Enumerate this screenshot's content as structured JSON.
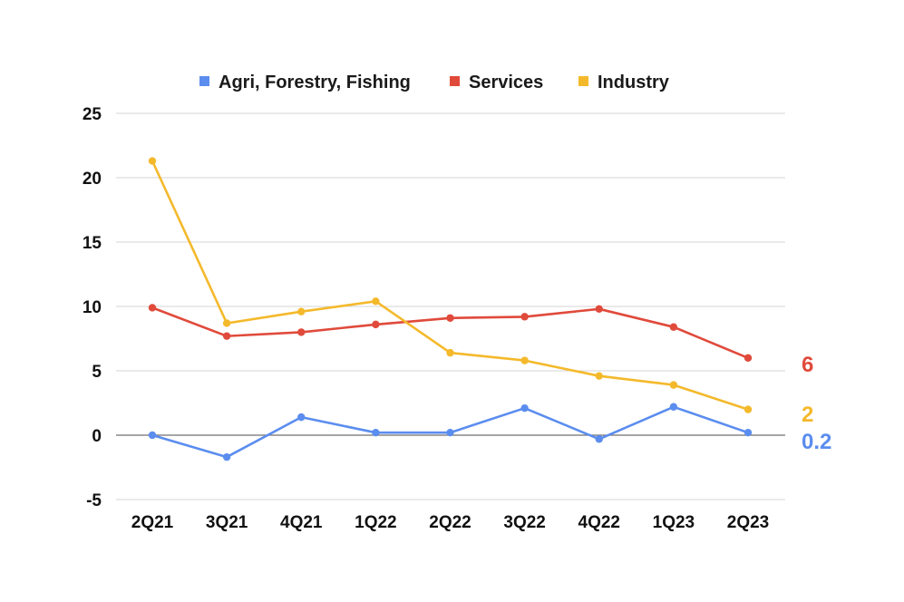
{
  "chart_data": {
    "type": "line",
    "title": "",
    "xlabel": "",
    "ylabel": "",
    "categories": [
      "2Q21",
      "3Q21",
      "4Q21",
      "1Q22",
      "2Q22",
      "3Q22",
      "4Q22",
      "1Q23",
      "2Q23"
    ],
    "ylim": [
      -5,
      25
    ],
    "yticks": [
      "-5",
      "0",
      "5",
      "10",
      "15",
      "20",
      "25"
    ],
    "grid": true,
    "legend_position": "top-center",
    "series": [
      {
        "name": "Agri, Forestry, Fishing",
        "color": "#5b8def",
        "values": [
          0.0,
          -1.7,
          1.4,
          0.2,
          0.2,
          2.1,
          -0.3,
          2.2,
          0.2
        ],
        "end_label": "0.2"
      },
      {
        "name": "Services",
        "color": "#e04a3b",
        "values": [
          9.9,
          7.7,
          8.0,
          8.6,
          9.1,
          9.2,
          9.8,
          8.4,
          6.0
        ],
        "end_label": "6"
      },
      {
        "name": "Industry",
        "color": "#f4b92b",
        "values": [
          21.3,
          8.7,
          9.6,
          10.4,
          6.4,
          5.8,
          4.6,
          3.9,
          2.0
        ],
        "end_label": "2"
      }
    ]
  }
}
